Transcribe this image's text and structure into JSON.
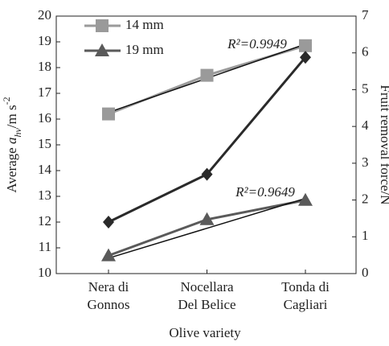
{
  "chart_data": {
    "type": "line",
    "categories": [
      [
        "Nera di",
        "Gonnos"
      ],
      [
        "Nocellara",
        "Del Belice"
      ],
      [
        "Tonda di",
        "Cagliari"
      ]
    ],
    "xlabel": "Olive variety",
    "ylabel_parts": [
      "Average ",
      "a",
      "hv",
      "/m s",
      "-2"
    ],
    "y2label": "Fruit removal force/N",
    "ylim": [
      10,
      20
    ],
    "yticks": [
      10,
      11,
      12,
      13,
      14,
      15,
      16,
      17,
      18,
      19,
      20
    ],
    "y2lim": [
      0,
      7
    ],
    "y2ticks": [
      0,
      1,
      2,
      3,
      4,
      5,
      6,
      7
    ],
    "legend": "upper left",
    "series": [
      {
        "name": "14 mm",
        "color": "#9a9a9a",
        "marker": "square",
        "values": [
          16.2,
          17.7,
          18.85
        ],
        "trend": [
          16.26,
          18.91
        ],
        "r2": "R²=0.9949"
      },
      {
        "name": "19 mm",
        "color": "#5a5a5a",
        "marker": "triangle",
        "values": [
          10.7,
          12.1,
          12.85
        ],
        "trend": [
          10.6,
          12.92
        ],
        "r2": "R²=0.9649"
      },
      {
        "color": "#2a2a2a",
        "marker": "diamond",
        "axis": "y2",
        "values": [
          1.4,
          2.7,
          5.88
        ]
      }
    ]
  }
}
